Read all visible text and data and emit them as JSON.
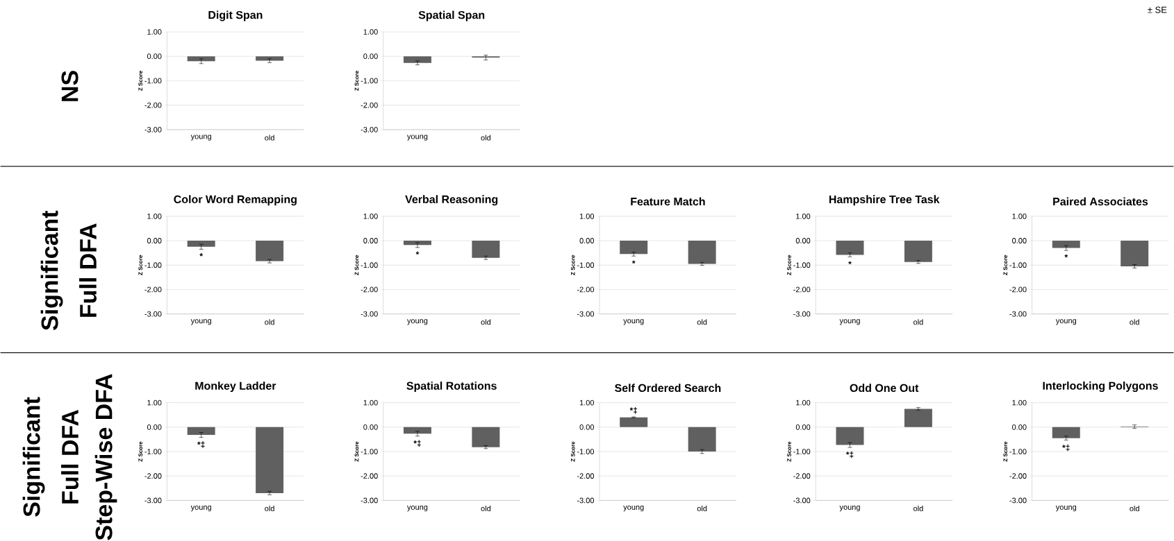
{
  "chart_data": [
    {
      "type": "bar",
      "title": "Digit Span",
      "ylabel": "Z Score",
      "categories": [
        "young",
        "old"
      ],
      "values": [
        -0.2,
        -0.18
      ],
      "errors": [
        0.1,
        0.08
      ],
      "color": "#606060",
      "ylim": [
        -3,
        1
      ],
      "yticks": [
        {
          "value": 1,
          "label": "1.00"
        },
        {
          "value": 0,
          "label": "0.00"
        },
        {
          "value": -1,
          "label": "-1.00"
        },
        {
          "value": -2,
          "label": "-2.00"
        },
        {
          "value": -3,
          "label": "-3.00"
        }
      ],
      "grid": "y",
      "annotations": [
        "NS"
      ]
    },
    {
      "type": "bar",
      "title": "Spatial Span",
      "ylabel": "Z Score",
      "categories": [
        "young",
        "old"
      ],
      "values": [
        -0.27,
        -0.05
      ],
      "errors": [
        0.08,
        0.1
      ],
      "color": "#606060",
      "ylim": [
        -3,
        1
      ],
      "yticks": [
        {
          "value": 1,
          "label": "1.00"
        },
        {
          "value": 0,
          "label": "0.00"
        },
        {
          "value": -1,
          "label": "-1.00"
        },
        {
          "value": -2,
          "label": "-2.00"
        },
        {
          "value": -3,
          "label": "-3.00"
        }
      ],
      "grid": "y",
      "annotations": [
        "± SE"
      ]
    },
    {
      "type": "bar",
      "title": "Color Word Remapping",
      "ylabel": "Z Score",
      "categories": [
        "young",
        "old"
      ],
      "values": [
        -0.25,
        -0.84
      ],
      "errors": [
        0.1,
        0.07
      ],
      "color": "#606060",
      "ylim": [
        -3,
        1
      ],
      "yticks": [
        {
          "value": 1,
          "label": "1.00"
        },
        {
          "value": 0,
          "label": "0.00"
        },
        {
          "value": -1,
          "label": "-1.00"
        },
        {
          "value": -2,
          "label": "-2.00"
        },
        {
          "value": -3,
          "label": "-3.00"
        }
      ],
      "grid": "y",
      "annotations": [
        "Significant",
        "Full DFA",
        {
          "text": "*",
          "x": "young",
          "y": -0.25
        }
      ]
    },
    {
      "type": "bar",
      "title": "Verbal Reasoning",
      "ylabel": "Z Score",
      "categories": [
        "young",
        "old"
      ],
      "values": [
        -0.18,
        -0.7
      ],
      "errors": [
        0.1,
        0.07
      ],
      "color": "#606060",
      "ylim": [
        -3,
        1
      ],
      "yticks": [
        {
          "value": 1,
          "label": "1.00"
        },
        {
          "value": 0,
          "label": "0.00"
        },
        {
          "value": -1,
          "label": "-1.00"
        },
        {
          "value": -2,
          "label": "-2.00"
        },
        {
          "value": -3,
          "label": "-3.00"
        }
      ],
      "grid": "y",
      "annotations": [
        {
          "text": "*",
          "x": "young",
          "y": -0.18
        }
      ]
    },
    {
      "type": "bar",
      "title": "Feature Match",
      "ylabel": "Z Score",
      "categories": [
        "young",
        "old"
      ],
      "values": [
        -0.55,
        -0.95
      ],
      "errors": [
        0.08,
        0.06
      ],
      "color": "#606060",
      "ylim": [
        -3,
        1
      ],
      "yticks": [
        {
          "value": 1,
          "label": "1.00"
        },
        {
          "value": 0,
          "label": "0.00"
        },
        {
          "value": -1,
          "label": "-1.00"
        },
        {
          "value": -2,
          "label": "-2.00"
        },
        {
          "value": -3,
          "label": "-3.00"
        }
      ],
      "grid": "y",
      "annotations": [
        {
          "text": "*",
          "x": "young",
          "y": -0.55
        }
      ]
    },
    {
      "type": "bar",
      "title": "Hampshire Tree Task",
      "ylabel": "Z Score",
      "categories": [
        "young",
        "old"
      ],
      "values": [
        -0.58,
        -0.87
      ],
      "errors": [
        0.08,
        0.06
      ],
      "color": "#606060",
      "ylim": [
        -3,
        1
      ],
      "yticks": [
        {
          "value": 1,
          "label": "1.00"
        },
        {
          "value": 0,
          "label": "0.00"
        },
        {
          "value": -1,
          "label": "-1.00"
        },
        {
          "value": -2,
          "label": "-2.00"
        },
        {
          "value": -3,
          "label": "-3.00"
        }
      ],
      "grid": "y",
      "annotations": [
        {
          "text": "*",
          "x": "young",
          "y": -0.58
        }
      ]
    },
    {
      "type": "bar",
      "title": "Paired Associates",
      "ylabel": "Z Score",
      "categories": [
        "young",
        "old"
      ],
      "values": [
        -0.3,
        -1.05
      ],
      "errors": [
        0.1,
        0.07
      ],
      "color": "#606060",
      "ylim": [
        -3,
        1
      ],
      "yticks": [
        {
          "value": 1,
          "label": "1.00"
        },
        {
          "value": 0,
          "label": "0.00"
        },
        {
          "value": -1,
          "label": "-1.00"
        },
        {
          "value": -2,
          "label": "-2.00"
        },
        {
          "value": -3,
          "label": "-3.00"
        }
      ],
      "grid": "y",
      "annotations": [
        {
          "text": "*",
          "x": "young",
          "y": -0.3
        }
      ]
    },
    {
      "type": "bar",
      "title": "Monkey Ladder",
      "ylabel": "Z Score",
      "categories": [
        "young",
        "old"
      ],
      "values": [
        -0.32,
        -2.7
      ],
      "errors": [
        0.1,
        0.07
      ],
      "color": "#606060",
      "ylim": [
        -3,
        1
      ],
      "yticks": [
        {
          "value": 1,
          "label": "1.00"
        },
        {
          "value": 0,
          "label": "0.00"
        },
        {
          "value": -1,
          "label": "-1.00"
        },
        {
          "value": -2,
          "label": "-2.00"
        },
        {
          "value": -3,
          "label": "-3.00"
        }
      ],
      "grid": "y",
      "annotations": [
        "Significant",
        "Full DFA",
        "Step-Wise DFA",
        {
          "text": "*‡",
          "x": "young",
          "y": -0.32
        }
      ]
    },
    {
      "type": "bar",
      "title": "Spatial Rotations",
      "ylabel": "Z Score",
      "categories": [
        "young",
        "old"
      ],
      "values": [
        -0.27,
        -0.82
      ],
      "errors": [
        0.1,
        0.06
      ],
      "color": "#606060",
      "ylim": [
        -3,
        1
      ],
      "yticks": [
        {
          "value": 1,
          "label": "1.00"
        },
        {
          "value": 0,
          "label": "0.00"
        },
        {
          "value": -1,
          "label": "-1.00"
        },
        {
          "value": -2,
          "label": "-2.00"
        },
        {
          "value": -3,
          "label": "-3.00"
        }
      ],
      "grid": "y",
      "annotations": [
        {
          "text": "*‡",
          "x": "young",
          "y": -0.27
        }
      ]
    },
    {
      "type": "bar",
      "title": "Self Ordered Search",
      "ylabel": "Z Score",
      "categories": [
        "young",
        "old"
      ],
      "values": [
        0.4,
        -1.0
      ],
      "errors": [
        0.02,
        0.08
      ],
      "color": "#606060",
      "ylim": [
        -3,
        1
      ],
      "yticks": [
        {
          "value": 1,
          "label": "1.00"
        },
        {
          "value": 0,
          "label": "0.00"
        },
        {
          "value": -1,
          "label": "-1.00"
        },
        {
          "value": -2,
          "label": "-2.00"
        },
        {
          "value": -3,
          "label": "-3.00"
        }
      ],
      "grid": "y",
      "annotations": [
        {
          "text": "*‡",
          "x": "young",
          "y": 0.4
        }
      ]
    },
    {
      "type": "bar",
      "title": "Odd One Out",
      "ylabel": "Z Score",
      "categories": [
        "young",
        "old"
      ],
      "values": [
        -0.73,
        0.75
      ],
      "errors": [
        0.1,
        0.05
      ],
      "color": "#606060",
      "ylim": [
        -3,
        1
      ],
      "yticks": [
        {
          "value": 1,
          "label": "1.00"
        },
        {
          "value": 0,
          "label": "0.00"
        },
        {
          "value": -1,
          "label": "-1.00"
        },
        {
          "value": -2,
          "label": "-2.00"
        },
        {
          "value": -3,
          "label": "-3.00"
        }
      ],
      "grid": "y",
      "annotations": [
        {
          "text": "*‡",
          "x": "young",
          "y": -0.73
        }
      ]
    },
    {
      "type": "bar",
      "title": "Interlocking Polygons",
      "ylabel": "Z Score",
      "categories": [
        "young",
        "old"
      ],
      "values": [
        -0.45,
        0.02
      ],
      "errors": [
        0.08,
        0.07
      ],
      "color": "#606060",
      "ylim": [
        -3,
        1
      ],
      "yticks": [
        {
          "value": 1,
          "label": "1.00"
        },
        {
          "value": 0,
          "label": "0.00"
        },
        {
          "value": -1,
          "label": "-1.00"
        },
        {
          "value": -2,
          "label": "-2.00"
        },
        {
          "value": -3,
          "label": "-3.00"
        }
      ],
      "grid": "y",
      "annotations": [
        {
          "text": "*‡",
          "x": "young",
          "y": -0.45
        }
      ]
    }
  ]
}
